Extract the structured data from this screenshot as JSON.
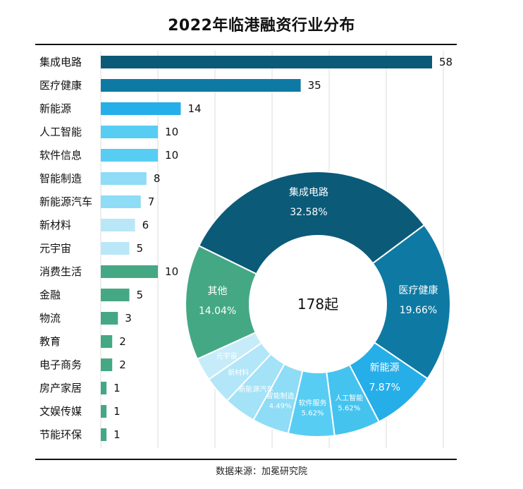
{
  "title": "2022年临港融资行业分布",
  "source": "数据来源：加冕研究院",
  "chart_data": [
    {
      "type": "bar",
      "orientation": "horizontal",
      "categories": [
        "集成电路",
        "医疗健康",
        "新能源",
        "人工智能",
        "软件信息",
        "智能制造",
        "新能源汽车",
        "新材料",
        "元宇宙",
        "消费生活",
        "金融",
        "物流",
        "教育",
        "电子商务",
        "房产家居",
        "文娱传媒",
        "节能环保"
      ],
      "values": [
        58,
        35,
        14,
        10,
        10,
        8,
        7,
        6,
        5,
        10,
        5,
        3,
        2,
        2,
        1,
        1,
        1
      ],
      "colors": [
        "#0b5a78",
        "#0e7aa3",
        "#26aee8",
        "#58cdf3",
        "#58cdf3",
        "#8edcf6",
        "#8edcf6",
        "#b9e7f8",
        "#b9e7f8",
        "#45a884",
        "#45a884",
        "#45a884",
        "#45a884",
        "#45a884",
        "#45a884",
        "#45a884",
        "#45a884"
      ],
      "xlim": [
        0,
        60
      ],
      "grid": true
    },
    {
      "type": "pie",
      "style": "donut",
      "center_label": "178起",
      "slices": [
        {
          "name": "集成电路",
          "percent_label": "32.58%",
          "value": 32.58,
          "color": "#0b5a78"
        },
        {
          "name": "医疗健康",
          "percent_label": "19.66%",
          "value": 19.66,
          "color": "#0e7aa3"
        },
        {
          "name": "新能源",
          "percent_label": "7.87%",
          "value": 7.87,
          "color": "#26aee8"
        },
        {
          "name": "人工智能",
          "percent_label": "5.62%",
          "value": 5.62,
          "color": "#45c3ef"
        },
        {
          "name": "软件服务",
          "percent_label": "5.62%",
          "value": 5.62,
          "color": "#58cdf3"
        },
        {
          "name": "智能制造",
          "percent_label": "4.49%",
          "value": 4.49,
          "color": "#8edcf6"
        },
        {
          "name": "新能源汽车",
          "percent_label": "",
          "value": 3.93,
          "color": "#a3e2f7"
        },
        {
          "name": "新材料",
          "percent_label": "",
          "value": 3.37,
          "color": "#b3e6f8"
        },
        {
          "name": "元宇宙",
          "percent_label": "",
          "value": 2.81,
          "color": "#c6ecf9"
        },
        {
          "name": "其他",
          "percent_label": "14.04%",
          "value": 14.04,
          "color": "#45a884"
        }
      ]
    }
  ]
}
